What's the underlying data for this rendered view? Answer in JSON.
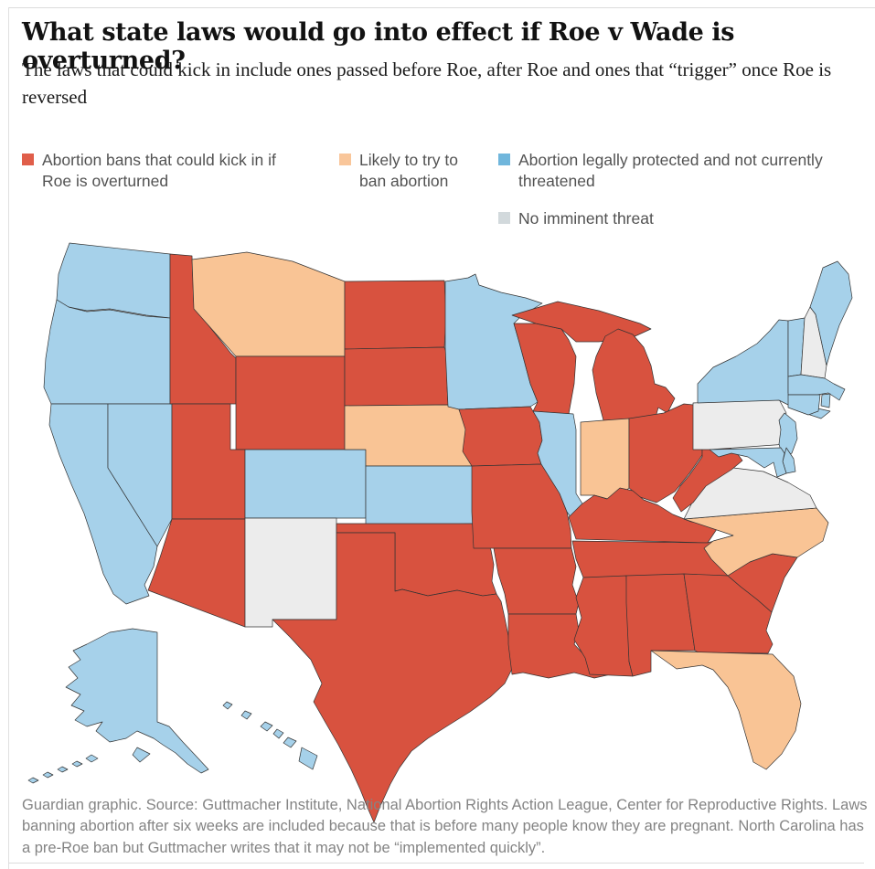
{
  "page": {
    "title": "What state laws would go into effect if Roe v Wade is overturned?",
    "standfirst": "The laws that could kick in include ones passed before Roe, after Roe and ones that “trigger” once Roe is reversed",
    "footer": "Guardian graphic. Source: Guttmacher Institute, National Abortion Rights Action League, Center for Reproductive Rights. Laws banning abortion after six weeks are included because that is before many people know they are pregnant. North Carolina has a pre-Roe ban but Guttmacher writes that it may not be “implemented quickly”."
  },
  "legend": {
    "items": [
      {
        "id": "ban",
        "label": "Abortion bans that could kick in if Roe is overturned",
        "swatch_color": "#e05e4a"
      },
      {
        "id": "likely_ban",
        "label": "Likely to try to ban abortion",
        "swatch_color": "#f9c69a"
      },
      {
        "id": "protected",
        "label": "Abortion legally protected and not currently threatened",
        "swatch_color": "#70b6dc"
      },
      {
        "id": "no_threat",
        "label": "No imminent threat",
        "swatch_color": "#d2d9dc"
      }
    ]
  },
  "map_data": {
    "type": "choropleth",
    "region": "United States",
    "categories": {
      "ban": {
        "label": "Abortion bans that could kick in if Roe is overturned",
        "map_color": "#d8523f"
      },
      "likely_ban": {
        "label": "Likely to try to ban abortion",
        "map_color": "#f9c495"
      },
      "protected": {
        "label": "Abortion legally protected and not currently threatened",
        "map_color": "#a6d1ea"
      },
      "no_threat": {
        "label": "No imminent threat",
        "map_color": "#ececec"
      }
    },
    "states": {
      "WA": "protected",
      "OR": "protected",
      "CA": "protected",
      "NV": "protected",
      "ID": "ban",
      "MT": "likely_ban",
      "WY": "ban",
      "UT": "ban",
      "CO": "protected",
      "AZ": "ban",
      "NM": "no_threat",
      "ND": "ban",
      "SD": "ban",
      "NE": "likely_ban",
      "KS": "protected",
      "OK": "ban",
      "TX": "ban",
      "MN": "protected",
      "IA": "ban",
      "MO": "ban",
      "AR": "ban",
      "LA": "ban",
      "WI": "ban",
      "MI": "ban",
      "IL": "protected",
      "IN": "likely_ban",
      "OH": "ban",
      "KY": "ban",
      "TN": "ban",
      "MS": "ban",
      "AL": "ban",
      "GA": "ban",
      "SC": "ban",
      "NC": "likely_ban",
      "FL": "likely_ban",
      "VA": "no_threat",
      "WV": "ban",
      "PA": "no_threat",
      "NY": "protected",
      "NJ": "protected",
      "DE": "protected",
      "MD": "protected",
      "CT": "protected",
      "RI": "protected",
      "MA": "protected",
      "VT": "protected",
      "NH": "no_threat",
      "ME": "protected",
      "AK": "protected",
      "HI": "protected"
    }
  }
}
